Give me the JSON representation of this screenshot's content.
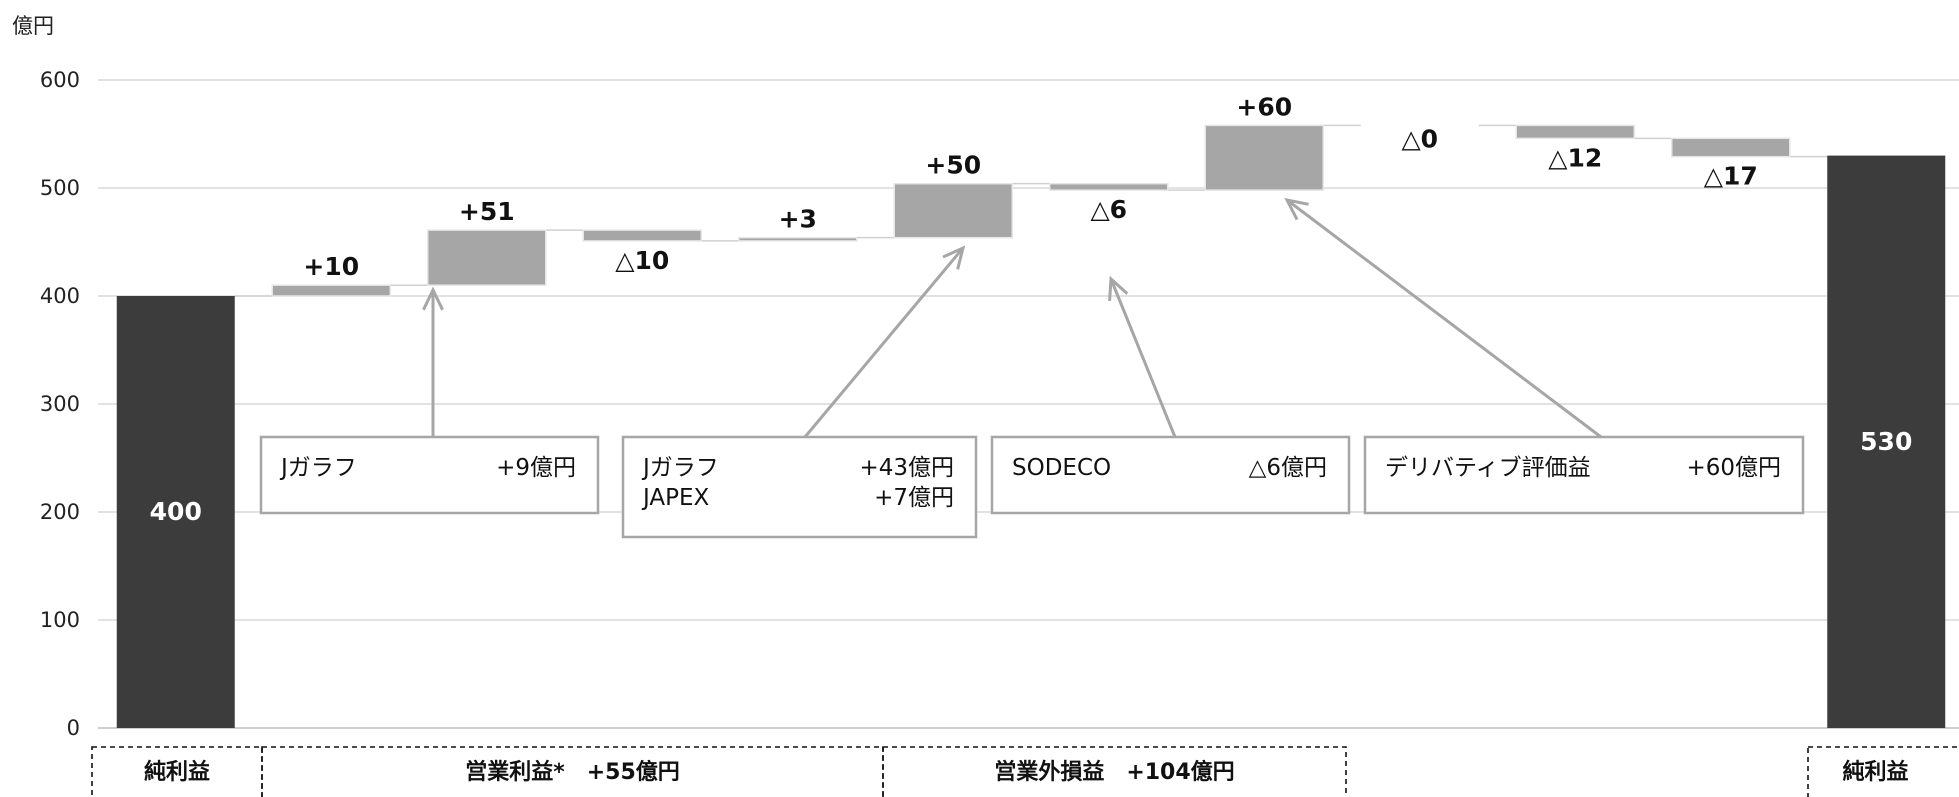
{
  "chart_data": {
    "type": "bar",
    "subtype": "waterfall",
    "unit_label": "億円",
    "ylim": [
      0,
      600
    ],
    "yticks": [
      "0",
      "100",
      "200",
      "300",
      "400",
      "500",
      "600"
    ],
    "grid": true,
    "steps": [
      {
        "kind": "total",
        "start": 0,
        "end": 400,
        "label": "400"
      },
      {
        "kind": "delta",
        "start": 400,
        "end": 410,
        "label": "+10"
      },
      {
        "kind": "delta",
        "start": 410,
        "end": 461,
        "label": "+51"
      },
      {
        "kind": "delta",
        "start": 461,
        "end": 451,
        "label": "△10"
      },
      {
        "kind": "delta",
        "start": 451,
        "end": 454,
        "label": "+3"
      },
      {
        "kind": "delta",
        "start": 454,
        "end": 504,
        "label": "+50"
      },
      {
        "kind": "delta",
        "start": 504,
        "end": 498,
        "label": "△6"
      },
      {
        "kind": "delta",
        "start": 498,
        "end": 558,
        "label": "+60"
      },
      {
        "kind": "delta",
        "start": 558,
        "end": 558,
        "label": "△0"
      },
      {
        "kind": "delta",
        "start": 558,
        "end": 546,
        "label": "△12"
      },
      {
        "kind": "delta",
        "start": 546,
        "end": 529,
        "label": "△17"
      },
      {
        "kind": "total",
        "start": 0,
        "end": 530,
        "label": "530"
      }
    ],
    "annotations": [
      {
        "lines": [
          [
            "Jガラフ",
            "+9億円"
          ]
        ],
        "target_step": 1
      },
      {
        "lines": [
          [
            "Jガラフ",
            "+43億円"
          ],
          [
            "JAPEX",
            "+7億円"
          ]
        ],
        "target_step": 5
      },
      {
        "lines": [
          [
            "SODECO",
            "△6億円"
          ]
        ],
        "target_step": 6
      },
      {
        "lines": [
          [
            "デリバティブ評価益",
            "+60億円"
          ]
        ],
        "target_step": 7
      }
    ],
    "category_groups": [
      {
        "label": "純利益",
        "from_step": 0,
        "to_step": 0
      },
      {
        "label": "営業利益*　+55億円",
        "from_step": 1,
        "to_step": 4
      },
      {
        "label": "営業外損益　+104億円",
        "from_step": 5,
        "to_step": 7
      },
      {
        "label": "純利益",
        "from_step": 11,
        "to_step": 11
      }
    ],
    "colors": {
      "total": "#3c3c3c",
      "delta": "#a6a6a6",
      "grid": "#d9d9d9",
      "connector": "#d0d0d0"
    }
  }
}
